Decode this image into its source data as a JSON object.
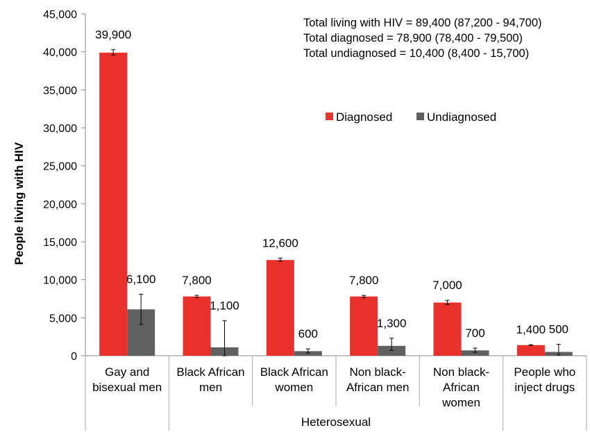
{
  "chart_data": {
    "type": "bar",
    "ylabel": "People living with HIV",
    "ylim": [
      0,
      45000
    ],
    "yticks": [
      "0",
      "5,000",
      "10,000",
      "15,000",
      "20,000",
      "25,000",
      "30,000",
      "35,000",
      "40,000",
      "45,000"
    ],
    "categories": [
      [
        "Gay and",
        "bisexual men"
      ],
      [
        "Black African",
        "men"
      ],
      [
        "Black African",
        "women"
      ],
      [
        "Non black-",
        "African men"
      ],
      [
        "Non black-",
        "African",
        "women"
      ],
      [
        "People who",
        "inject drugs"
      ]
    ],
    "group_label": "Heterosexual",
    "group_span": [
      1,
      4
    ],
    "series": [
      {
        "name": "Diagnosed",
        "color": "#e8312a",
        "values": [
          39900,
          7800,
          12600,
          7800,
          7000,
          1400
        ],
        "labels": [
          "39,900",
          "7,800",
          "12,600",
          "7,800",
          "7,000",
          "1,400"
        ],
        "error_low": [
          39600,
          7650,
          12450,
          7650,
          6750,
          1350
        ],
        "error_high": [
          40300,
          7950,
          12850,
          7950,
          7300,
          1450
        ]
      },
      {
        "name": "Undiagnosed",
        "color": "#606060",
        "values": [
          6100,
          1100,
          600,
          1300,
          700,
          500
        ],
        "labels": [
          "6,100",
          "1,100",
          "600",
          "1,300",
          "700",
          "500"
        ],
        "error_low": [
          4100,
          0,
          350,
          700,
          450,
          100
        ],
        "error_high": [
          8100,
          4600,
          900,
          2300,
          1000,
          1500
        ]
      }
    ],
    "annotations": [
      "Total living with HIV = 89,400 (87,200 - 94,700)",
      "Total diagnosed = 78,900 (78,400 - 79,500)",
      "Total undiagnosed = 10,400 (8,400 - 15,700)"
    ],
    "grid": false,
    "legend_position": "upper-right"
  }
}
